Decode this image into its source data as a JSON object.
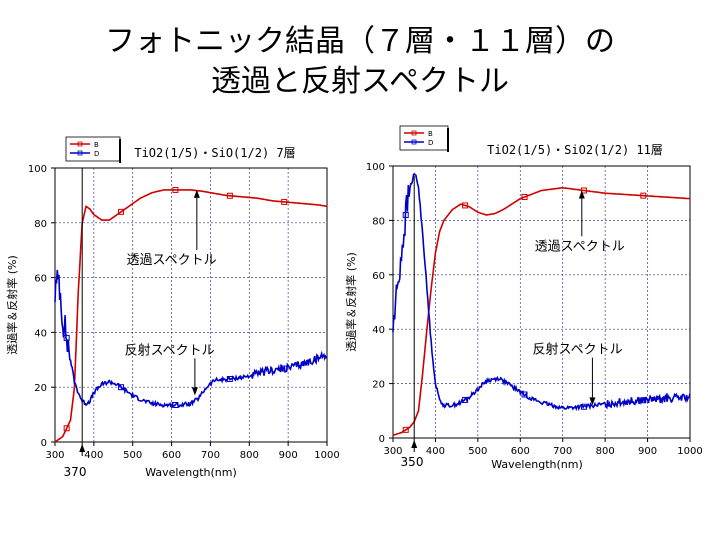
{
  "slide": {
    "title_line1": "フォトニック結晶（７層・１１層）の",
    "title_line2": "透過と反射スペクトル"
  },
  "chart_data": [
    {
      "type": "line",
      "title": "TiO2(1/5)・SiO(1/2) 7層",
      "xlabel": "Wavelength(nm)",
      "ylabel": "透過率＆反射率 (%)",
      "xlim": [
        300,
        1000
      ],
      "ylim": [
        0,
        100
      ],
      "xticks": [
        300,
        400,
        500,
        600,
        700,
        800,
        900,
        1000
      ],
      "yticks": [
        0,
        20,
        40,
        60,
        80,
        100
      ],
      "grid": true,
      "legend": {
        "placement": "top-left",
        "entries": [
          "B",
          "D"
        ]
      },
      "vline": {
        "x": 370,
        "label": "370"
      },
      "annotations": [
        {
          "text": "透過スペクトル",
          "x": 600,
          "y": 65,
          "arrow_to": [
            665,
            92
          ]
        },
        {
          "text": "反射スペクトル",
          "x": 595,
          "y": 32,
          "arrow_to": [
            660,
            17
          ]
        }
      ],
      "series": [
        {
          "name": "B",
          "color": "#d00000",
          "marker_every": 30,
          "x": [
            300,
            320,
            340,
            350,
            360,
            370,
            380,
            390,
            400,
            420,
            440,
            460,
            480,
            500,
            520,
            550,
            580,
            620,
            650,
            680,
            700,
            740,
            780,
            820,
            860,
            900,
            940,
            980,
            1000
          ],
          "y": [
            0,
            2,
            8,
            20,
            55,
            80,
            86,
            85,
            83,
            81,
            81,
            83,
            85,
            87,
            89,
            91,
            92,
            92,
            92,
            91.5,
            91,
            90,
            89.5,
            89,
            88,
            87.5,
            87,
            86.5,
            86
          ]
        },
        {
          "name": "D",
          "color": "#0000c8",
          "marker_every": 30,
          "noise": true,
          "x": [
            300,
            310,
            320,
            330,
            340,
            350,
            360,
            370,
            380,
            390,
            400,
            420,
            440,
            460,
            480,
            500,
            520,
            550,
            580,
            620,
            650,
            670,
            690,
            710,
            750,
            800,
            850,
            900,
            950,
            1000
          ],
          "y": [
            55,
            60,
            45,
            38,
            30,
            22,
            18,
            15,
            14,
            15,
            18,
            21,
            22,
            21,
            19,
            17,
            15.5,
            14,
            13.5,
            13.5,
            14,
            16,
            20,
            22.5,
            23,
            24,
            26,
            27,
            29,
            32
          ]
        }
      ]
    },
    {
      "type": "line",
      "title": "TiO2(1/5)・SiO2(1/2) 11層",
      "xlabel": "Wavelength(nm)",
      "ylabel": "透過率＆反射率 (%)",
      "xlim": [
        300,
        1000
      ],
      "ylim": [
        0,
        100
      ],
      "xticks": [
        300,
        400,
        500,
        600,
        700,
        800,
        900,
        1000
      ],
      "yticks": [
        0,
        20,
        40,
        60,
        80,
        100
      ],
      "grid": true,
      "legend": {
        "placement": "top-left",
        "entries": [
          "B",
          "D"
        ]
      },
      "vline": {
        "x": 350,
        "label": "350"
      },
      "annotations": [
        {
          "text": "透過スペクトル",
          "x": 740,
          "y": 69,
          "arrow_to": [
            745,
            91
          ]
        },
        {
          "text": "反射スペクトル",
          "x": 735,
          "y": 31,
          "arrow_to": [
            770,
            12
          ]
        }
      ],
      "series": [
        {
          "name": "B",
          "color": "#d00000",
          "marker_every": 30,
          "x": [
            300,
            320,
            340,
            350,
            360,
            370,
            380,
            390,
            400,
            410,
            420,
            440,
            460,
            480,
            500,
            520,
            540,
            560,
            580,
            600,
            650,
            700,
            750,
            800,
            850,
            900,
            950,
            1000
          ],
          "y": [
            1,
            2,
            4,
            6,
            10,
            24,
            40,
            55,
            68,
            76,
            80,
            84,
            86,
            85,
            83,
            82,
            82.5,
            84,
            86,
            88,
            91,
            92,
            91,
            90,
            89.5,
            89,
            88.5,
            88
          ]
        },
        {
          "name": "D",
          "color": "#0000c8",
          "marker_every": 30,
          "noise": true,
          "x": [
            300,
            310,
            320,
            330,
            340,
            350,
            355,
            360,
            370,
            380,
            390,
            400,
            410,
            420,
            440,
            460,
            480,
            500,
            520,
            550,
            580,
            620,
            650,
            700,
            750,
            800,
            850,
            900,
            950,
            1000
          ],
          "y": [
            40,
            55,
            68,
            82,
            92,
            97,
            96,
            92,
            75,
            55,
            35,
            20,
            14,
            12,
            12,
            13,
            15,
            18,
            21,
            22,
            19,
            15,
            13,
            11,
            11.5,
            12.5,
            13.5,
            14,
            14.5,
            15
          ]
        }
      ]
    }
  ]
}
